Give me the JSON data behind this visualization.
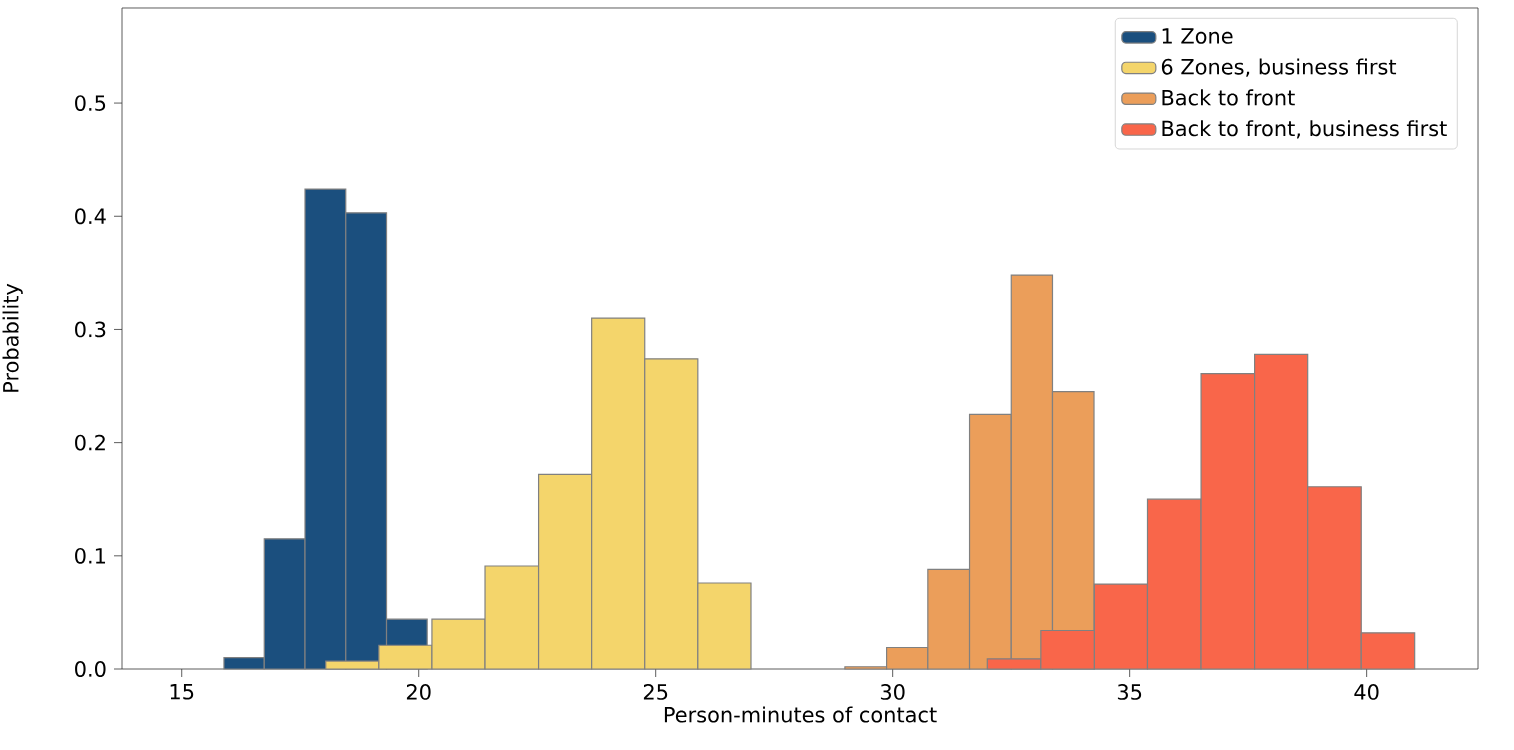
{
  "chart_data": {
    "type": "bar",
    "xlabel": "Person-minutes of contact",
    "ylabel": "Probability",
    "xlim": [
      13.74,
      42.35
    ],
    "ylim": [
      0,
      0.584
    ],
    "xticks": [
      {
        "value": 15,
        "label": "15"
      },
      {
        "value": 20,
        "label": "20"
      },
      {
        "value": 25,
        "label": "25"
      },
      {
        "value": 30,
        "label": "30"
      },
      {
        "value": 35,
        "label": "35"
      },
      {
        "value": 40,
        "label": "40"
      }
    ],
    "yticks": [
      {
        "value": 0,
        "label": "0.0"
      },
      {
        "value": 0.1,
        "label": "0.1"
      },
      {
        "value": 0.2,
        "label": "0.2"
      },
      {
        "value": 0.3,
        "label": "0.3"
      },
      {
        "value": 0.4,
        "label": "0.4"
      },
      {
        "value": 0.5,
        "label": "0.5"
      }
    ],
    "legend": "top right",
    "grid": false,
    "series": [
      {
        "name": "1 Zone",
        "color": "#1b4f7e",
        "x": [
          16.32,
          17.17,
          18.03,
          18.89,
          19.75
        ],
        "values": [
          0.01,
          0.115,
          0.424,
          0.403,
          0.044
        ]
      },
      {
        "name": "6 Zones, business first",
        "color": "#f4d56b",
        "x": [
          18.6,
          19.72,
          20.84,
          21.96,
          23.09,
          24.21,
          25.33,
          26.45
        ],
        "values": [
          0.007,
          0.021,
          0.044,
          0.091,
          0.172,
          0.31,
          0.274,
          0.076
        ]
      },
      {
        "name": "Back to front",
        "color": "#eb9e5a",
        "x": [
          29.43,
          30.31,
          31.18,
          32.06,
          32.94,
          33.81
        ],
        "values": [
          0.002,
          0.019,
          0.088,
          0.225,
          0.348,
          0.245
        ]
      },
      {
        "name": "Back to front, business first",
        "color": "#f9664a",
        "x": [
          32.56,
          33.69,
          34.82,
          35.94,
          37.07,
          38.2,
          39.32,
          40.45
        ],
        "values": [
          0.009,
          0.034,
          0.075,
          0.15,
          0.261,
          0.278,
          0.161,
          0.032
        ]
      }
    ]
  }
}
